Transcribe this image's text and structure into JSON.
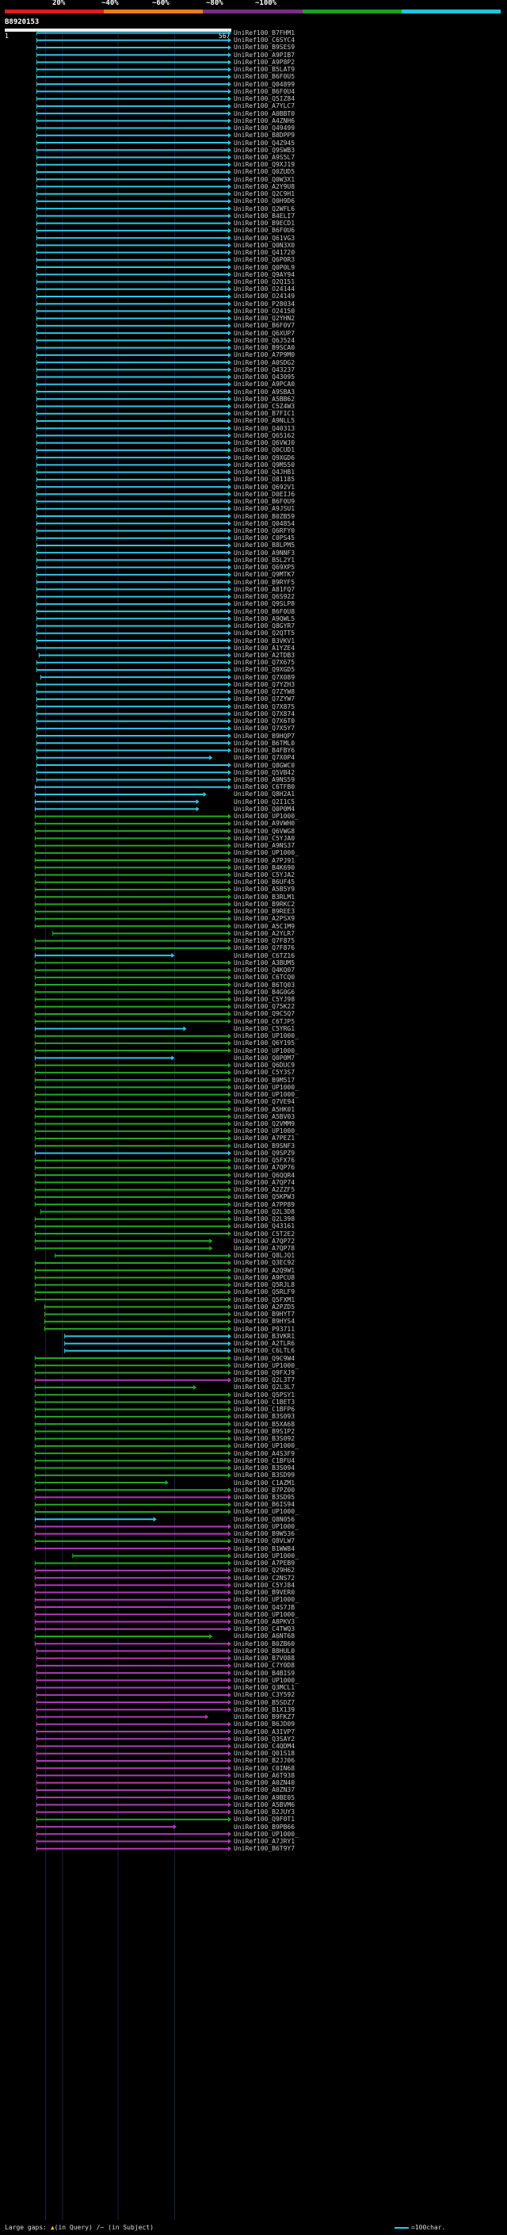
{
  "query": {
    "id": "B8920153",
    "start_label": "1",
    "end_label": "567",
    "length": 567
  },
  "identity_scale": {
    "ticks": [
      "20%",
      "~40%",
      "~60%",
      "~80%",
      "~100%"
    ],
    "colors": [
      "#e41a1c",
      "#e97d1a",
      "#7d2a8a",
      "#1aa01a",
      "#1ac6e0"
    ]
  },
  "colors": {
    "c": "#2fc6e6",
    "g": "#22aa22",
    "m": "#b33ab8"
  },
  "legend": {
    "large_gaps": "Large gaps:",
    "in_query": "(in Query)",
    "in_subject": "/~ (in Subject)",
    "unit": "=100char."
  },
  "hits_encoding": "label|color|query_start|query_end",
  "hits": [
    "UniRef100_B7FHM1|c|80|567",
    "UniRef100_C6SYC4|c|80|567",
    "UniRef100_B9SES9|c|80|567",
    "UniRef100_A9PIB7|c|80|567",
    "UniRef100_A9P8P2|c|80|567",
    "UniRef100_B5LAT9|c|80|567",
    "UniRef100_B6F0U5|c|80|567",
    "UniRef100_Q04899|c|80|567",
    "UniRef100_B6F0U4|c|80|567",
    "UniRef100_Q5IZ84|c|80|567",
    "UniRef100_A7YLC7|c|80|567",
    "UniRef100_A0BBT0|c|80|567",
    "UniRef100_A4ZNH6|c|80|567",
    "UniRef100_Q49499|c|80|567",
    "UniRef100_B8DPP9|c|80|567",
    "UniRef100_Q4Z945|c|80|567",
    "UniRef100_Q9SWB3|c|80|567",
    "UniRef100_A9S5L7|c|80|567",
    "UniRef100_Q9XJ19|c|80|567",
    "UniRef100_Q0ZUD5|c|80|567",
    "UniRef100_Q0W3X1|c|80|567",
    "UniRef100_A2Y9U8|c|80|567",
    "UniRef100_Q2C9H1|c|80|567",
    "UniRef100_Q0H9D6|c|80|567",
    "UniRef100_Q2WFL6|c|80|567",
    "UniRef100_B4ELI7|c|80|567",
    "UniRef100_B9ECD1|c|80|567",
    "UniRef100_B6F0U6|c|80|567",
    "UniRef100_Q61VG3|c|80|567",
    "UniRef100_Q0N3X0|c|80|567",
    "UniRef100_Q41720|c|80|567",
    "UniRef100_Q6P0R3|c|80|567",
    "UniRef100_Q0P0L9|c|80|567",
    "UniRef100_Q9AY94|c|80|567",
    "UniRef100_Q2Q151|c|80|567",
    "UniRef100_O24144|c|80|567",
    "UniRef100_O24149|c|80|567",
    "UniRef100_P28034|c|80|567",
    "UniRef100_O24150|c|80|567",
    "UniRef100_Q2YHN2|c|80|567",
    "UniRef100_B6F0V7|c|80|567",
    "UniRef100_Q6XUP7|c|80|567",
    "UniRef100_Q6J524|c|80|567",
    "UniRef100_B9SCA0|c|80|567",
    "UniRef100_A7P9M0|c|80|567",
    "UniRef100_A0SDG2|c|80|567",
    "UniRef100_Q43237|c|80|567",
    "UniRef100_Q43095|c|80|567",
    "UniRef100_A9PCA0|c|80|567",
    "UniRef100_A9SBA3|c|80|567",
    "UniRef100_A5BB62|c|80|567",
    "UniRef100_C5Z4W3|c|80|567",
    "UniRef100_B7FIC1|c|80|567",
    "UniRef100_A9NLL5|c|80|567",
    "UniRef100_Q40313|c|80|567",
    "UniRef100_Q65162|c|80|567",
    "UniRef100_Q6VWJ0|c|80|567",
    "UniRef100_Q0CUD1|c|80|567",
    "UniRef100_Q9XGD6|c|80|567",
    "UniRef100_Q9M550|c|80|567",
    "UniRef100_Q4JHB1|c|80|567",
    "UniRef100_O81185|c|80|567",
    "UniRef100_Q692V1|c|80|567",
    "UniRef100_D0EIJ6|c|80|567",
    "UniRef100_B6F0U9|c|80|567",
    "UniRef100_A9JSU1|c|80|567",
    "UniRef100_B0ZB59|c|80|567",
    "UniRef100_Q04854|c|80|567",
    "UniRef100_Q6RFY0|c|80|567",
    "UniRef100_C0PS45|c|80|567",
    "UniRef100_B8LPM5|c|80|567",
    "UniRef100_A9NNF3|c|80|567",
    "UniRef100_B5L2Y1|c|80|567",
    "UniRef100_Q69XP5|c|80|567",
    "UniRef100_Q9MTK7|c|80|567",
    "UniRef100_B9RYF5|c|80|567",
    "UniRef100_A81FQ7|c|80|567",
    "UniRef100_Q6S922|c|80|567",
    "UniRef100_Q9SLP8|c|80|567",
    "UniRef100_B6F0U8|c|80|567",
    "UniRef100_A9QWL5|c|80|567",
    "UniRef100_Q8GYR7|c|80|567",
    "UniRef100_Q2QTT5|c|80|567",
    "UniRef100_B3VKV1|c|80|567",
    "UniRef100_A1YZE4|c|80|567",
    "UniRef100_A2TDB3|c|86|567",
    "UniRef100_Q7X675|c|80|567",
    "UniRef100_Q9XGD5|c|80|567",
    "UniRef100_Q7X089|c|90|567",
    "UniRef100_Q7YZH3|c|80|567",
    "UniRef100_Q7ZYW8|c|80|567",
    "UniRef100_Q7ZYW7|c|80|567",
    "UniRef100_Q7X875|c|80|567",
    "UniRef100_Q7X874|c|80|567",
    "UniRef100_Q7X6T0|c|80|567",
    "UniRef100_Q7X5Y7|c|80|567",
    "UniRef100_B9HQP7|c|80|567",
    "UniRef100_B6TML0|c|80|567",
    "UniRef100_B4FBY6|c|80|567",
    "UniRef100_Q7X0P4|c|80|520",
    "UniRef100_Q8GWC0|c|80|567",
    "UniRef100_Q5VB42|c|80|567",
    "UniRef100_A9NS59|c|80|567",
    "UniRef100_C6TFB0|c|76|567",
    "UniRef100_Q8H2A1|c|76|505",
    "UniRef100_Q2I1C5|c|76|487",
    "UniRef100_Q0P0M4|c|76|487",
    "UniRef100_UP1000_|g|76|567",
    "UniRef100_A9VWH0|g|76|567",
    "UniRef100_Q6VWG8|g|76|567",
    "UniRef100_C5YJA0|g|76|567",
    "UniRef100_A9NS37|g|76|567",
    "UniRef100_UP1000_|g|76|567",
    "UniRef100_A7PJ91|g|76|567",
    "UniRef100_B4K690|g|76|567",
    "UniRef100_C5YJA2|g|76|567",
    "UniRef100_B6UF45|g|76|567",
    "UniRef100_A5B5Y9|g|76|567",
    "UniRef100_B3RLM1|g|76|567",
    "UniRef100_B9RKC2|g|76|567",
    "UniRef100_B9REE3|g|76|567",
    "UniRef100_A2PSX9|g|76|567",
    "UniRef100_A5C1M9|g|76|567",
    "UniRef100_A2YLR7|g|120|567",
    "UniRef100_Q7F875|g|76|567",
    "UniRef100_Q7F876|g|76|567",
    "UniRef100_C6TZ16|c|76|425",
    "UniRef100_A3BUM5|g|76|567",
    "UniRef100_Q4KQ07|g|76|567",
    "UniRef100_C6TCQ0|g|76|567",
    "UniRef100_B6TQ03|g|76|567",
    "UniRef100_B4G0G6|g|76|567",
    "UniRef100_C5YJ98|g|76|567",
    "UniRef100_Q75K22|g|76|567",
    "UniRef100_Q9C5Q7|g|76|567",
    "UniRef100_C6TJP5|g|76|567",
    "UniRef100_C5YRG1|c|76|455",
    "UniRef100_UP1000_|g|76|567",
    "UniRef100_Q6Y195|g|76|567",
    "UniRef100_UP1000_|g|76|567",
    "UniRef100_Q0P0M7|c|76|425",
    "UniRef100_Q6DUC9|g|76|567",
    "UniRef100_C5Y3S7|g|76|567",
    "UniRef100_B9M517|g|76|567",
    "UniRef100_UP1000_|g|76|567",
    "UniRef100_UP1000_|g|76|567",
    "UniRef100_Q7VE94|g|76|567",
    "UniRef100_A5HK01|g|76|567",
    "UniRef100_A5BV03|g|76|567",
    "UniRef100_Q2VMM9|g|76|567",
    "UniRef100_UP1000_|g|76|567",
    "UniRef100_A7PEZ1|g|76|567",
    "UniRef100_B9SNF3|g|76|567",
    "UniRef100_Q9SPZ9|c|76|567",
    "UniRef100_Q5FX76|g|76|567",
    "UniRef100_A7QP76|g|76|567",
    "UniRef100_Q6QQR4|g|76|567",
    "UniRef100_A7QP74|g|76|567",
    "UniRef100_A2ZZF5|g|76|567",
    "UniRef100_Q5KPW3|g|76|567",
    "UniRef100_A7PP89|g|76|567",
    "UniRef100_Q2L3D8|g|90|567",
    "UniRef100_Q2L398|g|76|567",
    "UniRef100_Q43161|g|76|567",
    "UniRef100_C5T2E2|g|76|567",
    "UniRef100_A7QP72|g|76|520",
    "UniRef100_A7QP78|g|76|520",
    "UniRef100_Q8LJQ1|g|126|567",
    "UniRef100_Q3EC92|g|76|567",
    "UniRef100_A2Q9W1|g|76|567",
    "UniRef100_A9PCU8|g|76|567",
    "UniRef100_Q5RJL8|g|76|567",
    "UniRef100_Q5RLF9|g|76|567",
    "UniRef100_Q5FXM1|g|76|567",
    "UniRef100_A2PZD5|g|100|567",
    "UniRef100_B9HYT7|g|100|567",
    "UniRef100_B9HYS4|g|100|567",
    "UniRef100_P93711|g|100|567",
    "UniRef100_B3VKR1|c|150|567",
    "UniRef100_A2TLR6|c|150|567",
    "UniRef100_C6LTL6|c|150|567",
    "UniRef100_Q9C9W4|g|76|567",
    "UniRef100_UP1000_|g|76|567",
    "UniRef100_Q9FXJ9|g|76|567",
    "UniRef100_Q2L3T7|m|76|567",
    "UniRef100_Q2L3L7|g|76|480",
    "UniRef100_Q5PSY1|g|76|567",
    "UniRef100_C1BET3|g|76|567",
    "UniRef100_C1BFP6|g|76|567",
    "UniRef100_B3S093|g|76|567",
    "UniRef100_B5XA68|g|76|567",
    "UniRef100_B9S1P2|g|76|567",
    "UniRef100_B3S092|g|76|567",
    "UniRef100_UP1000_|g|76|567",
    "UniRef100_A4S3F9|g|76|567",
    "UniRef100_C1BFU4|g|76|567",
    "UniRef100_B3S094|g|76|567",
    "UniRef100_B3SD99|g|76|567",
    "UniRef100_C1AZM1|g|76|410",
    "UniRef100_B7PZ00|g|76|567",
    "UniRef100_B3SD95|m|76|567",
    "UniRef100_B6IS94|g|76|567",
    "UniRef100_UP1000_|g|76|567",
    "UniRef100_Q8N056|c|76|380",
    "UniRef100_UP1000_|m|76|567",
    "UniRef100_B9W536|m|76|567",
    "UniRef100_Q8VLW7|g|76|567",
    "UniRef100_B1WW84|m|76|567",
    "UniRef100_UP1000_|g|170|567",
    "UniRef100_A7PEB9|g|76|567",
    "UniRef100_Q29H62|m|76|567",
    "UniRef100_C2NS72|m|76|567",
    "UniRef100_C5YJ84|m|76|567",
    "UniRef100_B9VER0|m|76|567",
    "UniRef100_UP1000_|m|76|567",
    "UniRef100_Q4S7JB|m|76|567",
    "UniRef100_UP1000_|m|76|567",
    "UniRef100_A8PKV3|m|76|567",
    "UniRef100_C4TWQ3|m|76|567",
    "UniRef100_A6NT68|g|76|520",
    "UniRef100_B0ZB60|m|76|567",
    "UniRef100_B8HUL0|m|80|567",
    "UniRef100_B7V088|m|80|567",
    "UniRef100_C7Y0D8|m|80|567",
    "UniRef100_B4BIS9|m|80|567",
    "UniRef100_UP1000_|m|80|567",
    "UniRef100_Q3MCL1|m|80|567",
    "UniRef100_C3Y592|m|80|567",
    "UniRef100_B5SDZ7|m|80|567",
    "UniRef100_B1X139|m|80|567",
    "UniRef100_B9FKZ7|m|80|510",
    "UniRef100_B6JD09|m|80|567",
    "UniRef100_A3IVP7|m|80|567",
    "UniRef100_Q3SAY2|m|80|567",
    "UniRef100_C4QDM4|m|80|567",
    "UniRef100_Q01S18|m|80|567",
    "UniRef100_B2JJ06|m|80|567",
    "UniRef100_C0IN68|m|80|567",
    "UniRef100_A6T938|m|80|567",
    "UniRef100_A0ZN40|m|80|567",
    "UniRef100_A0ZN37|m|80|567",
    "UniRef100_A9BE05|m|80|567",
    "UniRef100_A5BVM6|m|80|567",
    "UniRef100_B2JUY3|m|80|567",
    "UniRef100_Q9F0T1|g|80|567",
    "UniRef100_B9PB66|m|80|430",
    "UniRef100_UP1000_|m|80|567",
    "UniRef100_A7JRY1|m|80|567",
    "UniRef100_B6T9Y7|m|80|567"
  ]
}
